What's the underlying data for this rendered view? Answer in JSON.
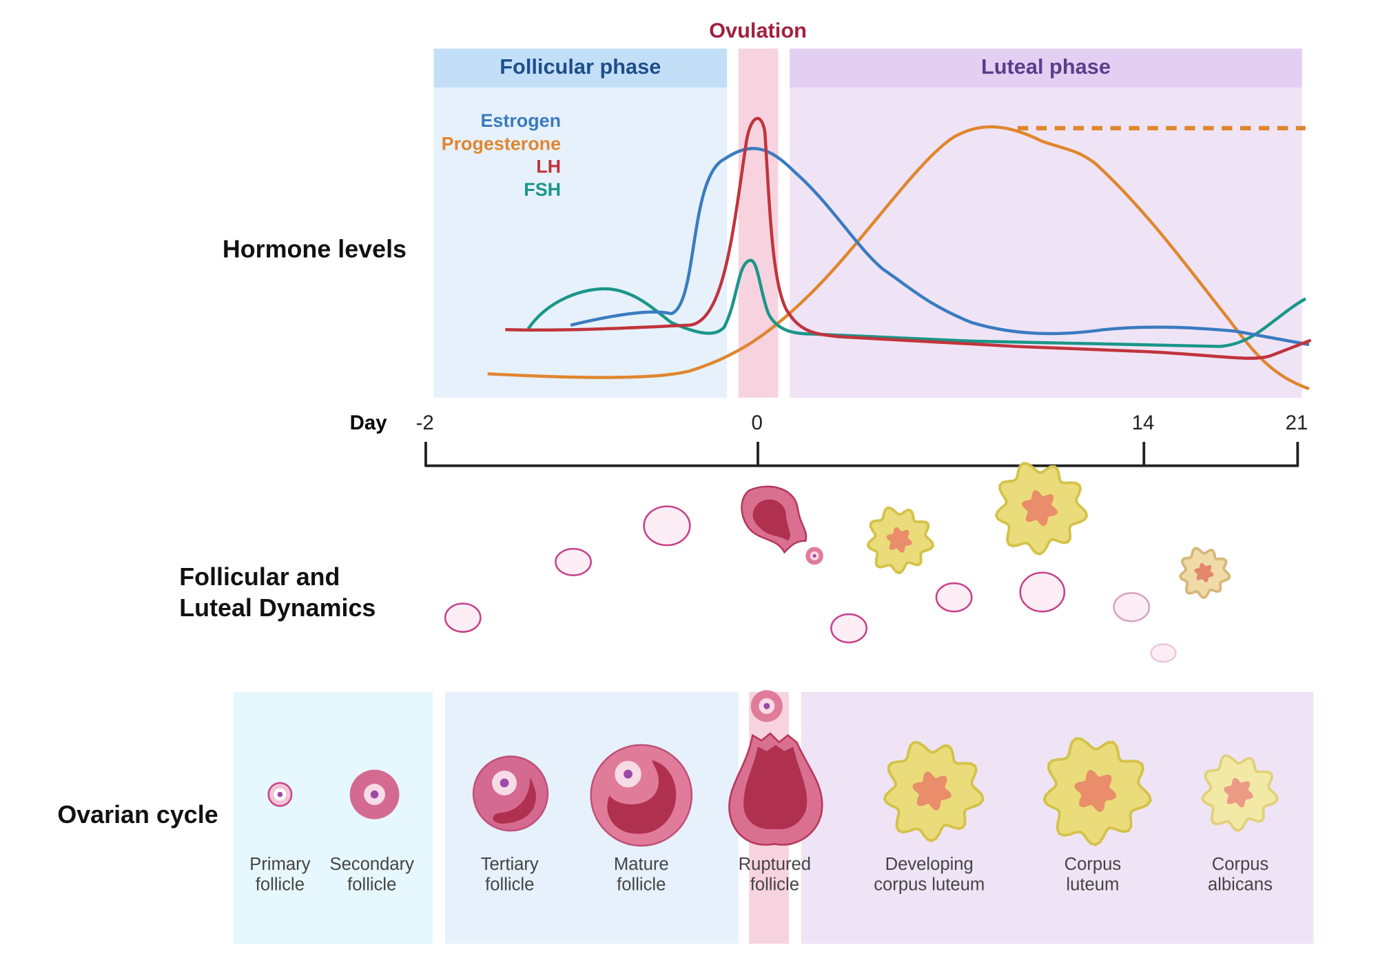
{
  "ovulation": "Ovulation",
  "phases": {
    "follicular": "Follicular phase",
    "luteal": "Luteal phase"
  },
  "hormone_legend": [
    "Estrogen",
    "Progesterone",
    "LH",
    "FSH"
  ],
  "rows": {
    "hormone_levels": "Hormone levels",
    "dynamics": [
      "Follicular and",
      "Luteal Dynamics"
    ],
    "ovarian_cycle": "Ovarian cycle"
  },
  "day_axis": {
    "label": "Day",
    "ticks": [
      -2,
      0,
      14,
      21
    ]
  },
  "stages": [
    [
      "Primary",
      "follicle"
    ],
    [
      "Secondary",
      "follicle"
    ],
    [
      "Tertiary",
      "follicle"
    ],
    [
      "Mature",
      "follicle"
    ],
    [
      "Ruptured",
      "follicle"
    ],
    [
      "Developing",
      "corpus luteum"
    ],
    [
      "Corpus",
      "luteum"
    ],
    [
      "Corpus",
      "albicans"
    ]
  ]
}
